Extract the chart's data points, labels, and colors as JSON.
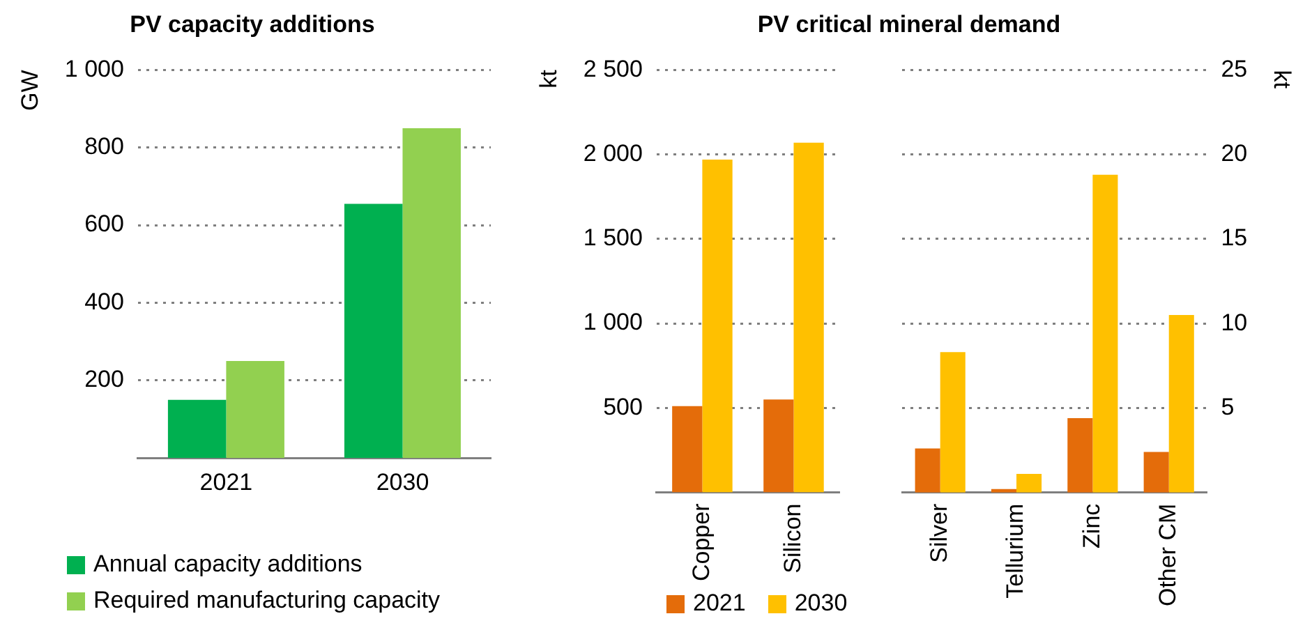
{
  "chart_data": [
    {
      "type": "bar",
      "title": "PV capacity additions",
      "ylabel": "GW",
      "categories": [
        "2021",
        "2030"
      ],
      "series": [
        {
          "name": "Annual capacity additions",
          "color": "#00b050",
          "values": [
            150,
            655
          ]
        },
        {
          "name": "Required manufacturing capacity",
          "color": "#92d050",
          "values": [
            250,
            850
          ]
        }
      ],
      "ylim": [
        0,
        1000
      ],
      "yticks": [
        200,
        400,
        600,
        800,
        {
          "value": 1000,
          "label": "1 000"
        }
      ],
      "grid": "y",
      "legend": "bottom"
    },
    {
      "type": "bar",
      "title": "PV critical mineral demand",
      "ylabel": "kt",
      "categories": [
        "Copper",
        "Silicon"
      ],
      "series": [
        {
          "name": "2021",
          "color": "#e46c0a",
          "values": [
            510,
            550
          ]
        },
        {
          "name": "2030",
          "color": "#ffc000",
          "values": [
            1970,
            2070
          ]
        }
      ],
      "ylim": [
        0,
        2500
      ],
      "yticks": [
        500,
        {
          "value": 1000,
          "label": "1 000"
        },
        {
          "value": 1500,
          "label": "1 500"
        },
        {
          "value": 2000,
          "label": "2 000"
        },
        {
          "value": 2500,
          "label": "2 500"
        }
      ],
      "grid": "y",
      "legend": "bottom"
    },
    {
      "type": "bar",
      "y2label": "kt",
      "categories": [
        "Silver",
        "Tellurium",
        "Zinc",
        "Other CM"
      ],
      "series": [
        {
          "color": "#e46c0a",
          "axis": "y2",
          "values": [
            2.6,
            0.2,
            4.4,
            2.4
          ]
        },
        {
          "color": "#ffc000",
          "axis": "y2",
          "values": [
            8.3,
            1.1,
            18.8,
            10.5
          ]
        }
      ],
      "y2lim": [
        0,
        25
      ],
      "y2ticks": [
        5,
        10,
        15,
        20,
        25
      ],
      "grid": "y"
    }
  ]
}
